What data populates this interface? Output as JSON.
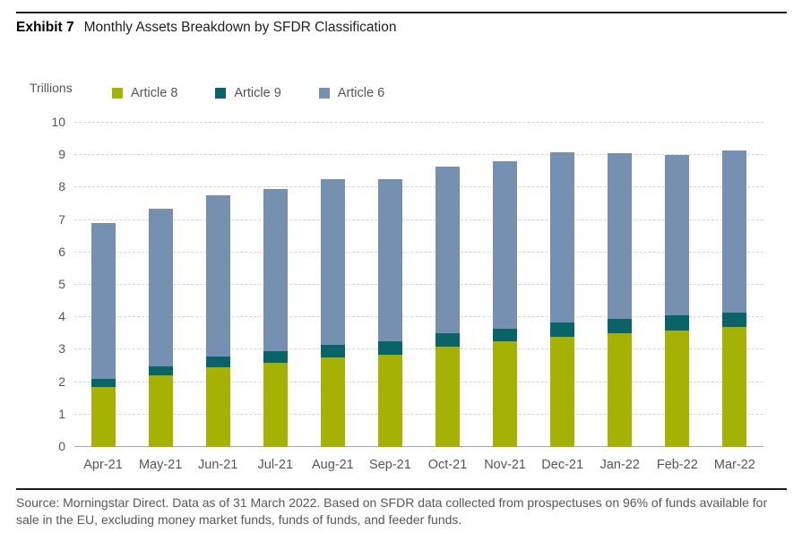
{
  "header": {
    "exhibit_label": "Exhibit 7",
    "title": "Monthly Assets Breakdown by SFDR Classification"
  },
  "chart": {
    "y_unit_label": "Trillions"
  },
  "chart_data": {
    "type": "bar",
    "stacked": true,
    "title": "Monthly Assets Breakdown by SFDR Classification",
    "categories": [
      "Apr-21",
      "May-21",
      "Jun-21",
      "Jul-21",
      "Aug-21",
      "Sep-21",
      "Oct-21",
      "Nov-21",
      "Dec-21",
      "Jan-22",
      "Feb-22",
      "Mar-22"
    ],
    "series": [
      {
        "name": "Article 8",
        "color": "#a5b204",
        "values": [
          1.85,
          2.2,
          2.45,
          2.6,
          2.75,
          2.85,
          3.1,
          3.25,
          3.4,
          3.5,
          3.6,
          3.7
        ]
      },
      {
        "name": "Article 9",
        "color": "#0a6366",
        "values": [
          0.25,
          0.3,
          0.35,
          0.35,
          0.4,
          0.4,
          0.4,
          0.4,
          0.45,
          0.45,
          0.45,
          0.45
        ]
      },
      {
        "name": "Article 6",
        "color": "#7590b1",
        "values": [
          4.8,
          4.85,
          4.95,
          5.0,
          5.1,
          5.0,
          5.15,
          5.15,
          5.25,
          5.1,
          4.95,
          5.0
        ]
      }
    ],
    "totals": [
      6.9,
      7.35,
      7.75,
      7.95,
      8.25,
      8.25,
      8.65,
      8.8,
      9.1,
      9.05,
      9.0,
      9.15
    ],
    "ylabel": "Trillions",
    "ylim": [
      0,
      10
    ],
    "yticks": [
      0,
      1,
      2,
      3,
      4,
      5,
      6,
      7,
      8,
      9,
      10
    ],
    "grid": "horizontal-dashed",
    "legend_position": "top"
  },
  "footer": {
    "source_text": "Source: Morningstar Direct. Data as of 31 March 2022. Based on SFDR data collected from prospectuses on 96% of funds available for sale in the EU, excluding money market funds, funds of funds, and feeder funds."
  }
}
